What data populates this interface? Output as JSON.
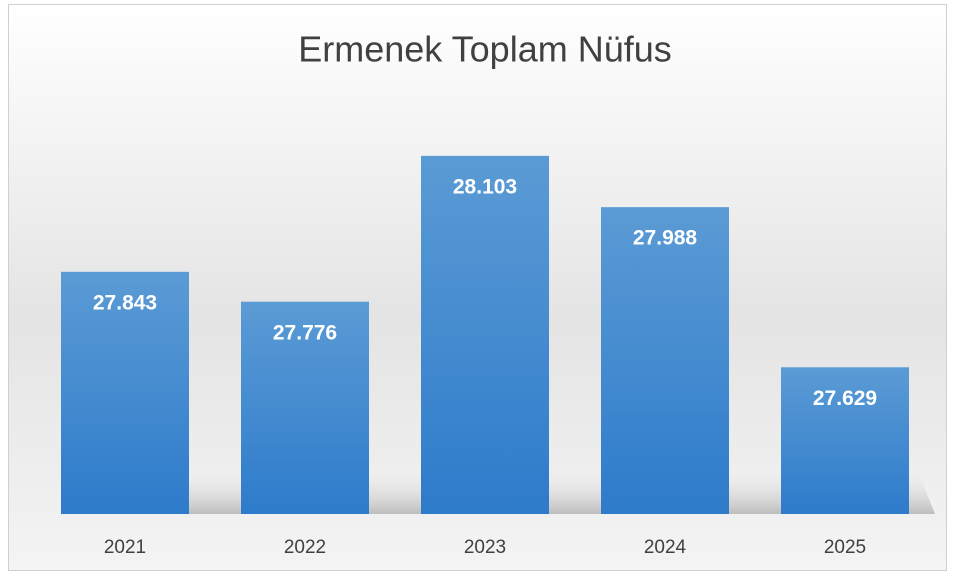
{
  "chart_data": {
    "type": "bar",
    "title": "Ermenek Toplam Nüfus",
    "categories": [
      "2021",
      "2022",
      "2023",
      "2024",
      "2025"
    ],
    "values": [
      27843,
      27776,
      28103,
      27988,
      27629
    ],
    "value_labels": [
      "27.843",
      "27.776",
      "28.103",
      "27.988",
      "27.629"
    ],
    "color": "#4a8fd6",
    "ylim": [
      27300,
      28300
    ],
    "grid": false
  }
}
